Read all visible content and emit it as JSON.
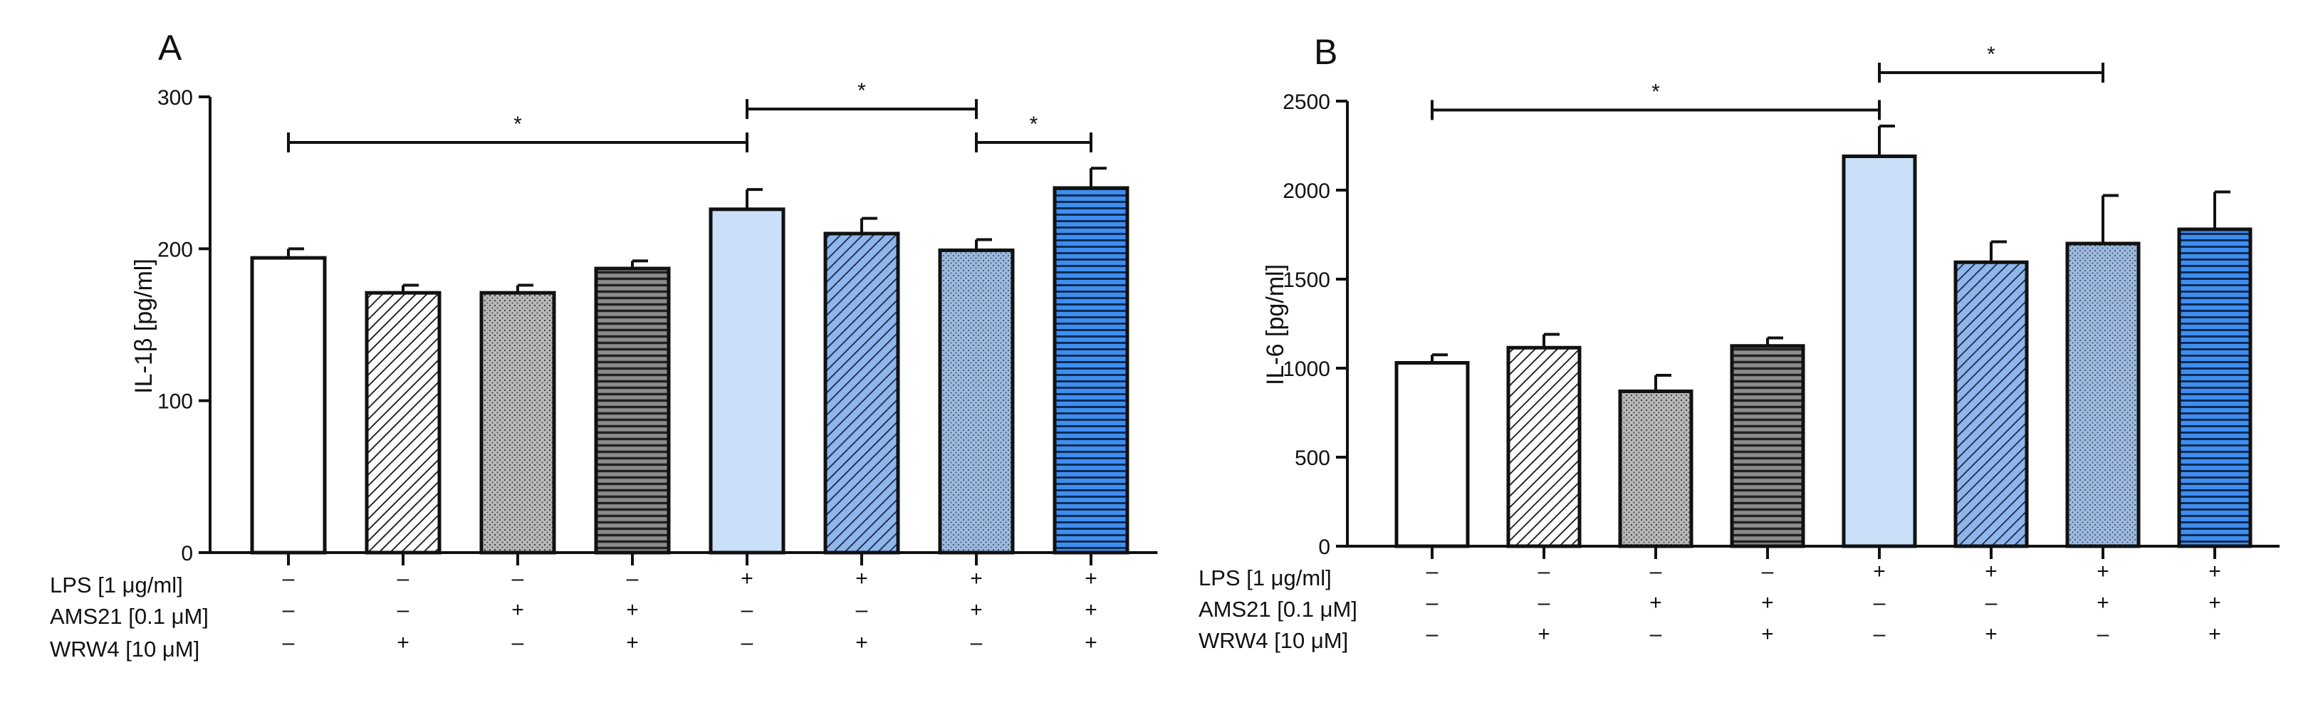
{
  "colors": {
    "white": "#ffffff",
    "gray_light": "#d6d6d6",
    "gray_dark": "#6f6f6f",
    "blue_light": "#cadff8",
    "blue_mid": "#9db9dd",
    "blue_bright": "#3e8ef0",
    "ink": "#111111"
  },
  "row_labels": [
    "LPS [1 μg/ml]",
    "AMS21 [0.1 μM]",
    "WRW4 [10 μM]"
  ],
  "condition_table": {
    "A": {
      "LPS": [
        "–",
        "–",
        "–",
        "–",
        "+",
        "+",
        "+",
        "+"
      ],
      "AMS21": [
        "–",
        "–",
        "+",
        "+",
        "–",
        "–",
        "+",
        "+"
      ],
      "WRW4": [
        "–",
        "+",
        "–",
        "+",
        "–",
        "+",
        "–",
        "+"
      ]
    },
    "B": {
      "LPS": [
        "–",
        "–",
        "–",
        "–",
        "+",
        "+",
        "+",
        "+"
      ],
      "AMS21": [
        "–",
        "–",
        "+",
        "+",
        "–",
        "–",
        "+",
        "+"
      ],
      "WRW4": [
        "–",
        "+",
        "–",
        "+",
        "–",
        "+",
        "–",
        "+"
      ]
    }
  },
  "chart_data": [
    {
      "panel": "A",
      "type": "bar",
      "ylabel": "IL-1β [pg/ml]",
      "ylim": [
        0,
        300
      ],
      "yticks": [
        0,
        100,
        200,
        300
      ],
      "values": [
        194,
        171,
        171,
        187,
        226,
        210,
        199,
        240
      ],
      "errors": [
        6,
        5,
        5,
        5,
        13,
        10,
        7,
        13
      ],
      "fills": [
        "white",
        "diag-light",
        "dots-gray",
        "horiz-dark",
        "blue-light",
        "diag-blue",
        "dots-blue",
        "horiz-blue"
      ],
      "significance": [
        {
          "from": 0,
          "to": 4,
          "label": "*",
          "level": 270
        },
        {
          "from": 4,
          "to": 6,
          "label": "*",
          "level": 292
        },
        {
          "from": 6,
          "to": 7,
          "label": "*",
          "level": 270
        }
      ]
    },
    {
      "panel": "B",
      "type": "bar",
      "ylabel": "IL-6 [pg/ml]",
      "ylim": [
        0,
        2500
      ],
      "yticks": [
        0,
        500,
        1000,
        1500,
        2000,
        2500
      ],
      "values": [
        1030,
        1115,
        870,
        1125,
        2190,
        1595,
        1700,
        1780
      ],
      "errors": [
        45,
        75,
        90,
        45,
        170,
        115,
        270,
        210
      ],
      "fills": [
        "white",
        "diag-light",
        "dots-gray",
        "horiz-dark",
        "blue-light",
        "diag-blue",
        "dots-blue",
        "horiz-blue"
      ],
      "significance": [
        {
          "from": 0,
          "to": 4,
          "label": "*",
          "level": 2450
        },
        {
          "from": 4,
          "to": 6,
          "label": "*",
          "level": 2660
        }
      ]
    }
  ]
}
